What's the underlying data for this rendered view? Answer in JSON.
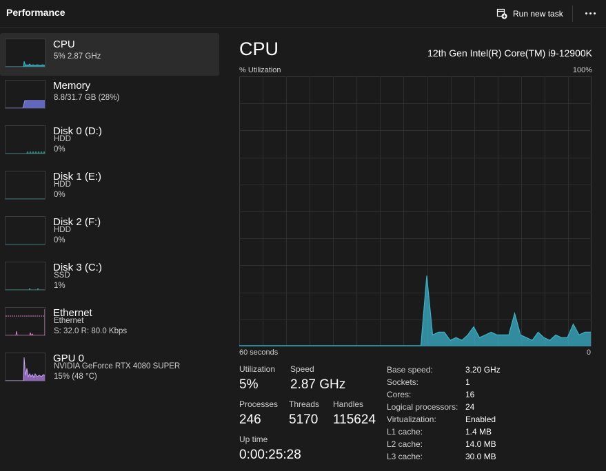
{
  "header": {
    "title": "Performance",
    "run_task_label": "Run new task"
  },
  "colors": {
    "cpu": "#3bb3c9",
    "memory": "#6f73d9",
    "disk": "#2fa59a",
    "ethernet": "#e083c8",
    "gpu": "#a678d9"
  },
  "sidebar": {
    "items": [
      {
        "name": "CPU",
        "line1": "5% 2.87 GHz",
        "line2": "",
        "icon": "cpu-graph-thumbnail"
      },
      {
        "name": "Memory",
        "line1": "8.8/31.7 GB (28%)",
        "line2": "",
        "icon": "memory-graph-thumbnail"
      },
      {
        "name": "Disk 0 (D:)",
        "line1": "HDD",
        "line2": "0%",
        "icon": "disk-graph-thumbnail"
      },
      {
        "name": "Disk 1 (E:)",
        "line1": "HDD",
        "line2": "0%",
        "icon": "disk-graph-thumbnail"
      },
      {
        "name": "Disk 2 (F:)",
        "line1": "HDD",
        "line2": "0%",
        "icon": "disk-graph-thumbnail"
      },
      {
        "name": "Disk 3 (C:)",
        "line1": "SSD",
        "line2": "1%",
        "icon": "disk-graph-thumbnail"
      },
      {
        "name": "Ethernet",
        "line1": "Ethernet",
        "line2": "S: 32.0  R: 80.0 Kbps",
        "icon": "ethernet-graph-thumbnail"
      },
      {
        "name": "GPU 0",
        "line1": "NVIDIA GeForce RTX 4080 SUPER",
        "line2": "15% (48 °C)",
        "icon": "gpu-graph-thumbnail"
      }
    ]
  },
  "main": {
    "title": "CPU",
    "model": "12th Gen Intel(R) Core(TM) i9-12900K",
    "graph_label_top_left": "% Utilization",
    "graph_label_top_right": "100%",
    "graph_label_bottom_left": "60 seconds",
    "graph_label_bottom_right": "0",
    "stats": {
      "utilization_label": "Utilization",
      "utilization": "5%",
      "speed_label": "Speed",
      "speed": "2.87 GHz",
      "processes_label": "Processes",
      "processes": "246",
      "threads_label": "Threads",
      "threads": "5170",
      "handles_label": "Handles",
      "handles": "115624",
      "uptime_label": "Up time",
      "uptime": "0:00:25:28"
    },
    "specs": [
      {
        "key": "Base speed:",
        "value": "3.20 GHz"
      },
      {
        "key": "Sockets:",
        "value": "1"
      },
      {
        "key": "Cores:",
        "value": "16"
      },
      {
        "key": "Logical processors:",
        "value": "24"
      },
      {
        "key": "Virtualization:",
        "value": "Enabled"
      },
      {
        "key": "L1 cache:",
        "value": "1.4 MB"
      },
      {
        "key": "L2 cache:",
        "value": "14.0 MB"
      },
      {
        "key": "L3 cache:",
        "value": "30.0 MB"
      }
    ]
  },
  "chart_data": {
    "type": "area",
    "xlabel": "60 seconds",
    "ylabel": "% Utilization",
    "ylim": [
      0,
      100
    ],
    "xlim": [
      60,
      0
    ],
    "grid": true,
    "series": [
      {
        "x": [
          60,
          59,
          58,
          57,
          56,
          55,
          54,
          53,
          52,
          51,
          50,
          49,
          48,
          47,
          46,
          45,
          44,
          43,
          42,
          41,
          40,
          39,
          38,
          37,
          36,
          35,
          34,
          33,
          32,
          31,
          30,
          29,
          28,
          27,
          26,
          25,
          24,
          23,
          22,
          21,
          20,
          19,
          18,
          17,
          16,
          15,
          14,
          13,
          12,
          11,
          10,
          9,
          8,
          7,
          6,
          5,
          4,
          3,
          2,
          1,
          0
        ],
        "values": [
          0,
          0,
          0,
          0,
          0,
          0,
          0,
          0,
          0,
          0,
          0,
          0,
          0,
          0,
          0,
          0,
          0,
          0,
          0,
          0,
          0,
          0,
          0,
          0,
          0,
          0,
          0,
          0,
          0,
          0,
          0,
          0,
          26,
          4,
          5,
          5,
          2,
          3,
          2,
          4,
          7,
          3,
          4,
          5,
          4,
          4,
          4,
          12,
          4,
          3,
          2,
          5,
          3,
          2,
          4,
          3,
          3,
          8,
          4,
          5,
          5
        ]
      }
    ]
  }
}
